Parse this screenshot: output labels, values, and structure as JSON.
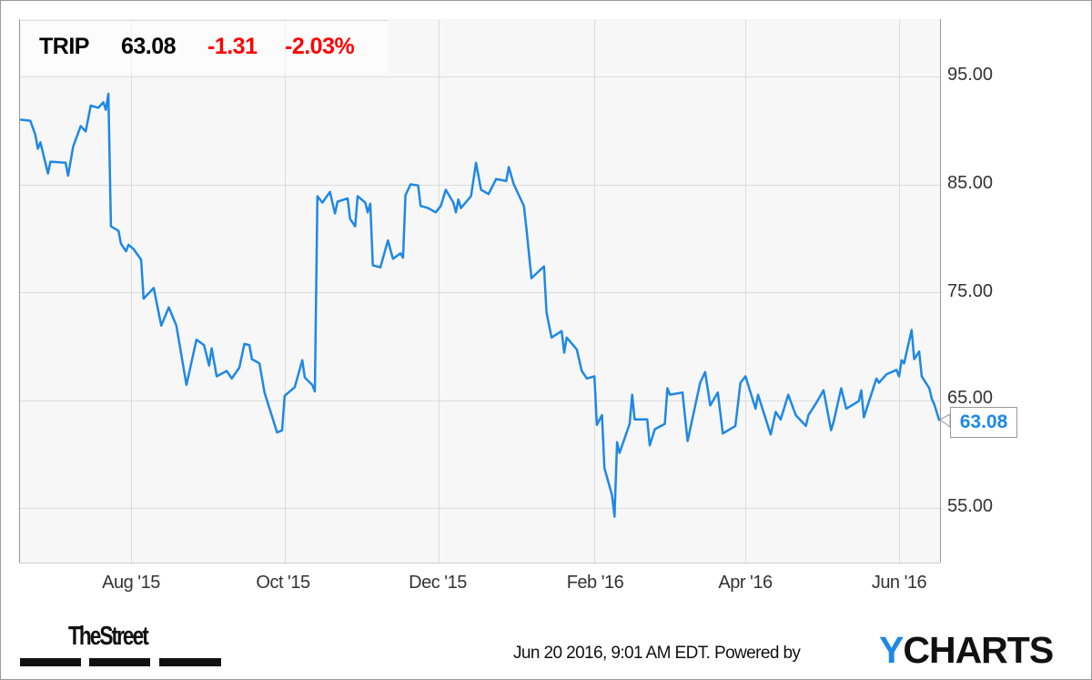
{
  "header": {
    "ticker": "TRIP",
    "price": "63.08",
    "change": "-1.31",
    "change_pct": "-2.03%"
  },
  "footer": {
    "timestamp": "Jun 20 2016, 9:01 AM EDT.  Powered by",
    "brand_y": "Y",
    "brand_rest": "CHARTS",
    "publisher_logo": "TheStreet"
  },
  "colors": {
    "line": "#1e88e5",
    "negative": "#ff0000",
    "plot_bg": "#f7f7f7",
    "grid": "#dcdcdc"
  },
  "chart_data": {
    "type": "line",
    "title": "",
    "xlabel": "",
    "ylabel": "",
    "y_axis_position": "right",
    "ylim": [
      50.5,
      100.3
    ],
    "yticks": [
      "95.00",
      "85.00",
      "75.00",
      "65.00",
      "55.00"
    ],
    "xticks": [
      "Aug '15",
      "Oct '15",
      "Dec '15",
      "Feb '16",
      "Apr '16",
      "Jun '16"
    ],
    "grid": true,
    "last_value_label": "63.08",
    "series": [
      {
        "points": [
          [
            "2015-06-18",
            91.0
          ],
          [
            "2015-06-22",
            90.9
          ],
          [
            "2015-06-24",
            89.6
          ],
          [
            "2015-06-25",
            88.3
          ],
          [
            "2015-06-26",
            88.9
          ],
          [
            "2015-06-29",
            86.0
          ],
          [
            "2015-06-30",
            87.1
          ],
          [
            "2015-07-06",
            87.0
          ],
          [
            "2015-07-07",
            85.8
          ],
          [
            "2015-07-09",
            88.5
          ],
          [
            "2015-07-12",
            90.4
          ],
          [
            "2015-07-14",
            89.9
          ],
          [
            "2015-07-16",
            92.3
          ],
          [
            "2015-07-19",
            92.1
          ],
          [
            "2015-07-21",
            92.6
          ],
          [
            "2015-07-22",
            91.9
          ],
          [
            "2015-07-23",
            93.4
          ],
          [
            "2015-07-24",
            81.1
          ],
          [
            "2015-07-27",
            80.7
          ],
          [
            "2015-07-28",
            79.5
          ],
          [
            "2015-07-30",
            78.8
          ],
          [
            "2015-07-31",
            79.4
          ],
          [
            "2015-08-02",
            79.0
          ],
          [
            "2015-08-05",
            78.0
          ],
          [
            "2015-08-06",
            74.4
          ],
          [
            "2015-08-10",
            75.4
          ],
          [
            "2015-08-13",
            71.9
          ],
          [
            "2015-08-16",
            73.6
          ],
          [
            "2015-08-19",
            71.9
          ],
          [
            "2015-08-23",
            66.4
          ],
          [
            "2015-08-27",
            70.6
          ],
          [
            "2015-08-30",
            70.1
          ],
          [
            "2015-09-01",
            68.2
          ],
          [
            "2015-09-02",
            69.8
          ],
          [
            "2015-09-04",
            67.2
          ],
          [
            "2015-09-08",
            67.7
          ],
          [
            "2015-09-10",
            67.0
          ],
          [
            "2015-09-13",
            68.0
          ],
          [
            "2015-09-15",
            70.2
          ],
          [
            "2015-09-17",
            70.1
          ],
          [
            "2015-09-18",
            68.8
          ],
          [
            "2015-09-21",
            68.4
          ],
          [
            "2015-09-23",
            65.7
          ],
          [
            "2015-09-28",
            62.0
          ],
          [
            "2015-09-30",
            62.2
          ],
          [
            "2015-10-01",
            65.4
          ],
          [
            "2015-10-05",
            66.2
          ],
          [
            "2015-10-08",
            68.7
          ],
          [
            "2015-10-09",
            67.1
          ],
          [
            "2015-10-12",
            66.4
          ],
          [
            "2015-10-13",
            65.8
          ],
          [
            "2015-10-14",
            83.9
          ],
          [
            "2015-10-16",
            83.3
          ],
          [
            "2015-10-19",
            84.3
          ],
          [
            "2015-10-21",
            82.3
          ],
          [
            "2015-10-22",
            83.4
          ],
          [
            "2015-10-26",
            83.7
          ],
          [
            "2015-10-27",
            81.8
          ],
          [
            "2015-10-29",
            81.1
          ],
          [
            "2015-10-30",
            83.9
          ],
          [
            "2015-11-02",
            83.3
          ],
          [
            "2015-11-03",
            82.4
          ],
          [
            "2015-11-04",
            83.2
          ],
          [
            "2015-11-05",
            77.5
          ],
          [
            "2015-11-08",
            77.3
          ],
          [
            "2015-11-11",
            79.8
          ],
          [
            "2015-11-13",
            78.1
          ],
          [
            "2015-11-16",
            78.6
          ],
          [
            "2015-11-17",
            78.2
          ],
          [
            "2015-11-18",
            84.0
          ],
          [
            "2015-11-20",
            85.0
          ],
          [
            "2015-11-23",
            84.9
          ],
          [
            "2015-11-24",
            83.0
          ],
          [
            "2015-11-27",
            82.8
          ],
          [
            "2015-11-30",
            82.4
          ],
          [
            "2015-12-02",
            83.0
          ],
          [
            "2015-12-04",
            84.5
          ],
          [
            "2015-12-07",
            83.3
          ],
          [
            "2015-12-08",
            82.4
          ],
          [
            "2015-12-09",
            83.6
          ],
          [
            "2015-12-10",
            82.8
          ],
          [
            "2015-12-14",
            83.9
          ],
          [
            "2015-12-16",
            87.0
          ],
          [
            "2015-12-18",
            84.5
          ],
          [
            "2015-12-21",
            84.1
          ],
          [
            "2015-12-24",
            85.5
          ],
          [
            "2015-12-28",
            85.3
          ],
          [
            "2015-12-29",
            86.6
          ],
          [
            "2015-12-31",
            85.0
          ],
          [
            "2016-01-04",
            83.0
          ],
          [
            "2016-01-05",
            80.9
          ],
          [
            "2016-01-07",
            76.3
          ],
          [
            "2016-01-12",
            77.4
          ],
          [
            "2016-01-13",
            73.1
          ],
          [
            "2016-01-15",
            70.8
          ],
          [
            "2016-01-19",
            71.4
          ],
          [
            "2016-01-20",
            69.4
          ],
          [
            "2016-01-21",
            70.8
          ],
          [
            "2016-01-25",
            69.7
          ],
          [
            "2016-01-27",
            67.7
          ],
          [
            "2016-01-29",
            67.0
          ],
          [
            "2016-02-01",
            67.2
          ],
          [
            "2016-02-02",
            62.7
          ],
          [
            "2016-02-04",
            63.6
          ],
          [
            "2016-02-05",
            58.7
          ],
          [
            "2016-02-08",
            56.2
          ],
          [
            "2016-02-09",
            54.2
          ],
          [
            "2016-02-10",
            61.1
          ],
          [
            "2016-02-11",
            60.1
          ],
          [
            "2016-02-15",
            62.8
          ],
          [
            "2016-02-16",
            65.5
          ],
          [
            "2016-02-17",
            63.2
          ],
          [
            "2016-02-22",
            63.2
          ],
          [
            "2016-02-23",
            60.8
          ],
          [
            "2016-02-25",
            62.3
          ],
          [
            "2016-02-29",
            62.8
          ],
          [
            "2016-03-01",
            66.1
          ],
          [
            "2016-03-02",
            65.5
          ],
          [
            "2016-03-07",
            65.7
          ],
          [
            "2016-03-09",
            61.2
          ],
          [
            "2016-03-14",
            66.6
          ],
          [
            "2016-03-16",
            67.6
          ],
          [
            "2016-03-18",
            64.5
          ],
          [
            "2016-03-21",
            65.7
          ],
          [
            "2016-03-23",
            61.9
          ],
          [
            "2016-03-28",
            62.6
          ],
          [
            "2016-03-30",
            66.6
          ],
          [
            "2016-04-01",
            67.2
          ],
          [
            "2016-04-05",
            64.2
          ],
          [
            "2016-04-06",
            65.5
          ],
          [
            "2016-04-11",
            61.8
          ],
          [
            "2016-04-13",
            63.9
          ],
          [
            "2016-04-15",
            63.2
          ],
          [
            "2016-04-18",
            65.5
          ],
          [
            "2016-04-21",
            63.6
          ],
          [
            "2016-04-25",
            62.6
          ],
          [
            "2016-04-26",
            63.6
          ],
          [
            "2016-04-29",
            64.7
          ],
          [
            "2016-05-02",
            65.9
          ],
          [
            "2016-05-05",
            62.2
          ],
          [
            "2016-05-06",
            63.0
          ],
          [
            "2016-05-09",
            66.1
          ],
          [
            "2016-05-11",
            64.2
          ],
          [
            "2016-05-16",
            64.9
          ],
          [
            "2016-05-17",
            65.9
          ],
          [
            "2016-05-18",
            63.4
          ],
          [
            "2016-05-23",
            67.0
          ],
          [
            "2016-05-24",
            66.6
          ],
          [
            "2016-05-27",
            67.4
          ],
          [
            "2016-05-31",
            67.8
          ],
          [
            "2016-06-01",
            67.2
          ],
          [
            "2016-06-02",
            68.7
          ],
          [
            "2016-06-03",
            68.4
          ],
          [
            "2016-06-06",
            71.5
          ],
          [
            "2016-06-07",
            68.8
          ],
          [
            "2016-06-09",
            69.5
          ],
          [
            "2016-06-10",
            67.2
          ],
          [
            "2016-06-13",
            66.1
          ],
          [
            "2016-06-14",
            65.1
          ],
          [
            "2016-06-15",
            64.6
          ],
          [
            "2016-06-17",
            63.08
          ]
        ]
      }
    ]
  }
}
